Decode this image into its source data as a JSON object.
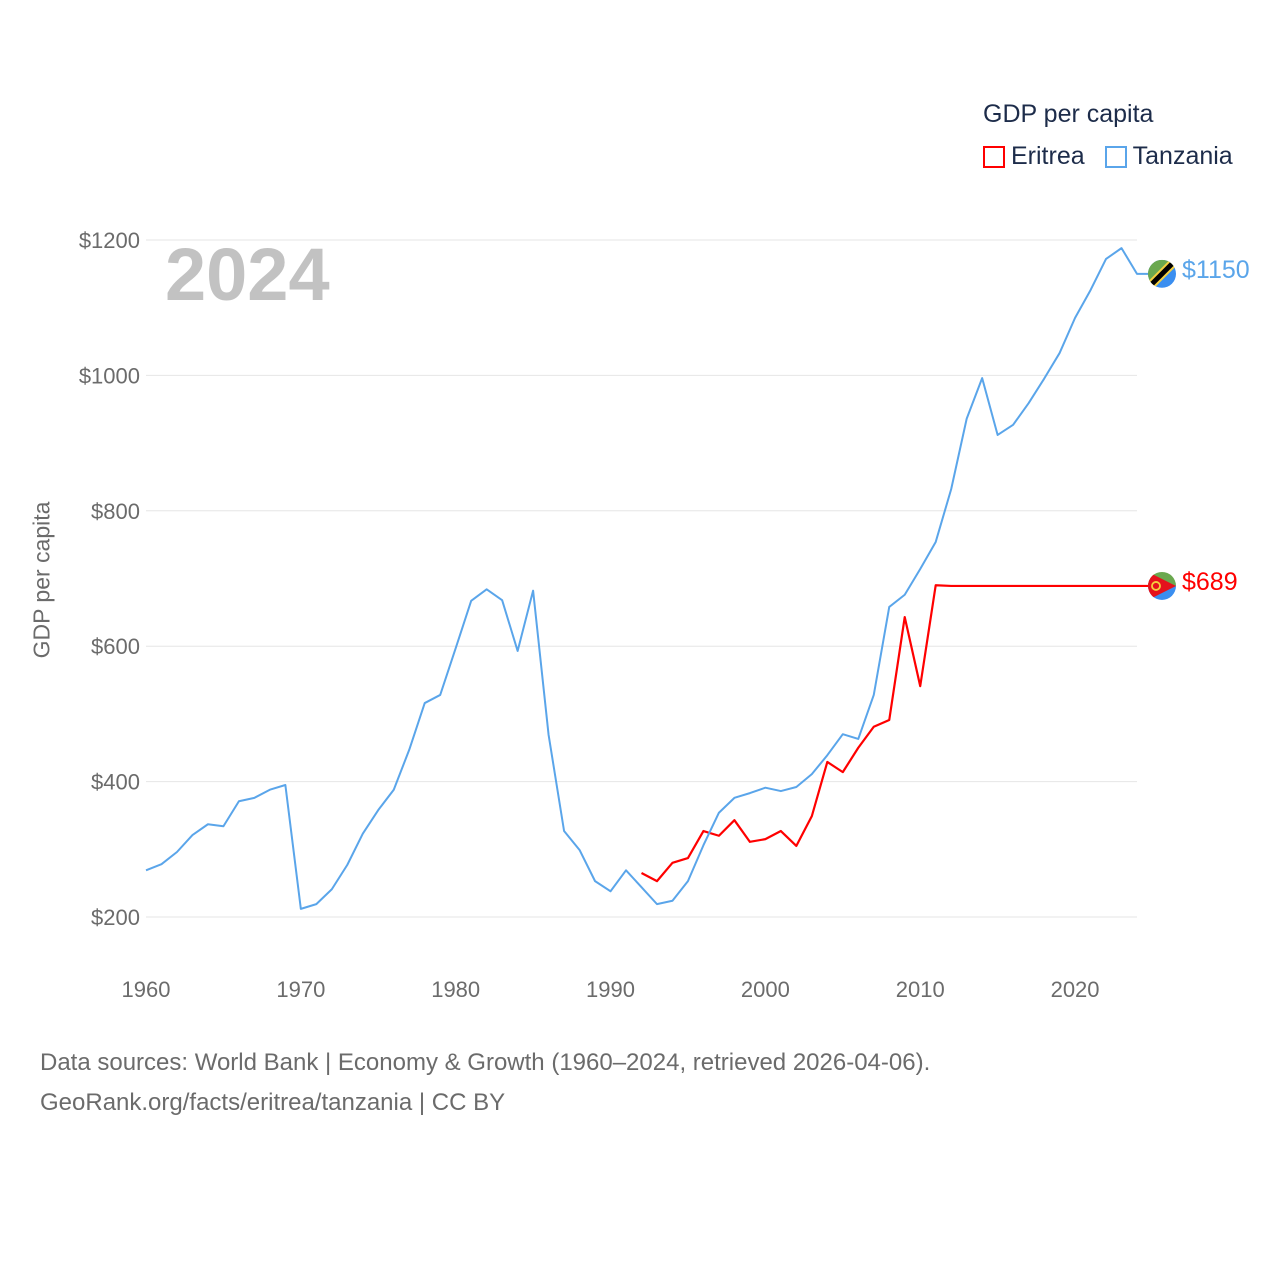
{
  "chart_data": {
    "type": "line",
    "title": "GDP per capita",
    "year_label": "2024",
    "xlabel": "",
    "ylabel": "GDP per capita",
    "xlim": [
      1960,
      2024
    ],
    "ylim": [
      200,
      1200
    ],
    "x_ticks": [
      "1960",
      "1970",
      "1980",
      "1990",
      "2000",
      "2010",
      "2020"
    ],
    "y_ticks": [
      "$200",
      "$400",
      "$600",
      "$800",
      "$1000",
      "$1200"
    ],
    "grid": true,
    "legend_placement": "top-right",
    "series": [
      {
        "name": "Eritrea",
        "color": "#ff0000",
        "end_label": "$689",
        "flag": "eritrea-flag-icon",
        "start_year": 1992,
        "values": [
          265,
          253,
          280,
          287,
          327,
          320,
          343,
          311,
          315,
          327,
          305,
          349,
          429,
          414,
          450,
          481,
          491,
          643,
          541,
          690,
          689,
          689,
          689,
          689,
          689,
          689,
          689,
          689,
          689,
          689,
          689,
          689,
          689
        ]
      },
      {
        "name": "Tanzania",
        "color": "#5aa5ea",
        "end_label": "$1150",
        "flag": "tanzania-flag-icon",
        "start_year": 1960,
        "values": [
          269,
          278,
          296,
          321,
          337,
          334,
          371,
          376,
          388,
          395,
          212,
          219,
          241,
          277,
          323,
          358,
          388,
          447,
          516,
          528,
          597,
          667,
          684,
          668,
          593,
          682,
          469,
          327,
          299,
          253,
          238,
          269,
          244,
          219,
          224,
          253,
          306,
          354,
          376,
          383,
          391,
          386,
          392,
          411,
          439,
          470,
          463,
          528,
          658,
          676,
          714,
          754,
          832,
          936,
          996,
          912,
          927,
          959,
          995,
          1033,
          1085,
          1126,
          1172,
          1188,
          1150
        ]
      }
    ]
  },
  "footer": {
    "line1": "Data sources: World Bank | Economy & Growth (1960–2024, retrieved 2026-04-06).",
    "line2": "GeoRank.org/facts/eritrea/tanzania | CC BY"
  }
}
